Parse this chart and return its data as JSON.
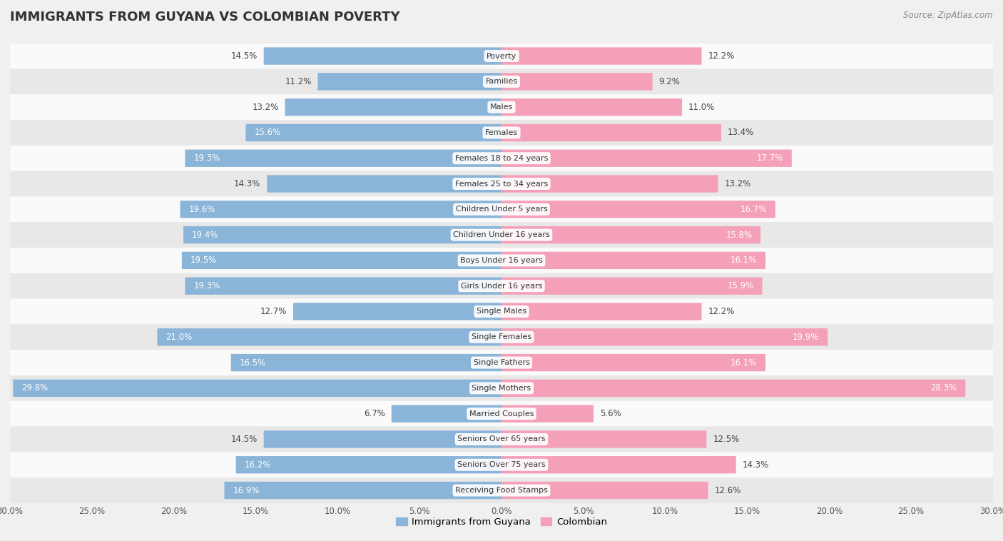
{
  "title": "IMMIGRANTS FROM GUYANA VS COLOMBIAN POVERTY",
  "source": "Source: ZipAtlas.com",
  "categories": [
    "Poverty",
    "Families",
    "Males",
    "Females",
    "Females 18 to 24 years",
    "Females 25 to 34 years",
    "Children Under 5 years",
    "Children Under 16 years",
    "Boys Under 16 years",
    "Girls Under 16 years",
    "Single Males",
    "Single Females",
    "Single Fathers",
    "Single Mothers",
    "Married Couples",
    "Seniors Over 65 years",
    "Seniors Over 75 years",
    "Receiving Food Stamps"
  ],
  "guyana_values": [
    14.5,
    11.2,
    13.2,
    15.6,
    19.3,
    14.3,
    19.6,
    19.4,
    19.5,
    19.3,
    12.7,
    21.0,
    16.5,
    29.8,
    6.7,
    14.5,
    16.2,
    16.9
  ],
  "colombian_values": [
    12.2,
    9.2,
    11.0,
    13.4,
    17.7,
    13.2,
    16.7,
    15.8,
    16.1,
    15.9,
    12.2,
    19.9,
    16.1,
    28.3,
    5.6,
    12.5,
    14.3,
    12.6
  ],
  "guyana_color": "#8ab4d8",
  "colombian_color": "#f4a0b8",
  "background_color": "#f0f0f0",
  "row_color_light": "#fafafa",
  "row_color_dark": "#e8e8e8",
  "axis_max": 30.0,
  "legend_labels": [
    "Immigrants from Guyana",
    "Colombian"
  ],
  "bar_height": 0.65,
  "inside_threshold": 15.0,
  "label_fontsize": 8.5,
  "cat_fontsize": 8.0,
  "title_fontsize": 13,
  "source_fontsize": 8.5
}
